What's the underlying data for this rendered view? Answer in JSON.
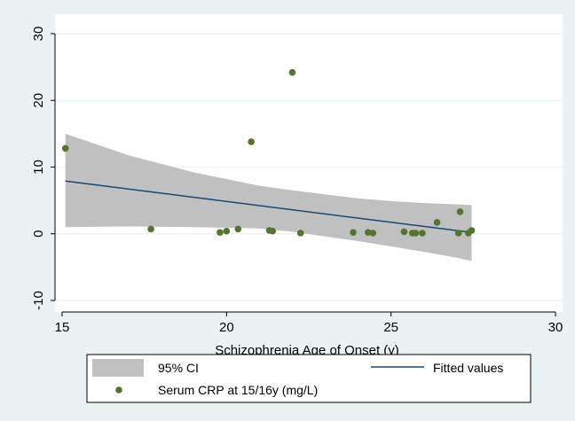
{
  "chart_data": {
    "type": "scatter",
    "title": "",
    "xlabel": "Schizophrenia Age of Onset (y)",
    "ylabel": "",
    "xlim": [
      15,
      30
    ],
    "ylim": [
      -10,
      30
    ],
    "x_ticks": [
      15,
      20,
      25,
      30
    ],
    "y_ticks": [
      -10,
      0,
      10,
      20,
      30
    ],
    "grid": true,
    "legend_position": "bottom",
    "colors": {
      "background": "#eaf2f3",
      "plot_area": "#ffffff",
      "ci_band": "#c0c0c0",
      "fitted_line": "#1a476f",
      "points": "#55752f"
    },
    "legend": [
      {
        "label": "95% CI",
        "symbol": "band"
      },
      {
        "label": "Fitted values",
        "symbol": "line"
      },
      {
        "label": "Serum CRP at 15/16y (mg/L)",
        "symbol": "point"
      }
    ],
    "series": [
      {
        "kind": "scatter",
        "points": [
          {
            "x": 15.1,
            "y": 12.8
          },
          {
            "x": 17.7,
            "y": 0.7
          },
          {
            "x": 19.8,
            "y": 0.2
          },
          {
            "x": 20.0,
            "y": 0.4
          },
          {
            "x": 20.35,
            "y": 0.7
          },
          {
            "x": 20.75,
            "y": 13.8
          },
          {
            "x": 21.3,
            "y": 0.5
          },
          {
            "x": 21.4,
            "y": 0.4
          },
          {
            "x": 22.0,
            "y": 24.2
          },
          {
            "x": 22.25,
            "y": 0.1
          },
          {
            "x": 23.85,
            "y": 0.2
          },
          {
            "x": 24.3,
            "y": 0.2
          },
          {
            "x": 24.45,
            "y": 0.1
          },
          {
            "x": 25.4,
            "y": 0.3
          },
          {
            "x": 25.65,
            "y": 0.1
          },
          {
            "x": 25.75,
            "y": 0.1
          },
          {
            "x": 25.95,
            "y": 0.1
          },
          {
            "x": 26.4,
            "y": 1.7
          },
          {
            "x": 27.05,
            "y": 0.1
          },
          {
            "x": 27.1,
            "y": 3.3
          },
          {
            "x": 27.35,
            "y": 0.1
          },
          {
            "x": 27.45,
            "y": 0.5
          }
        ]
      },
      {
        "kind": "fitted_line",
        "x": [
          15.1,
          27.45
        ],
        "y": [
          7.9,
          0.2
        ]
      },
      {
        "kind": "ci_band",
        "x": [
          15.1,
          17,
          19,
          21,
          22,
          23,
          24,
          25,
          26,
          27,
          27.45
        ],
        "upper": [
          15.0,
          11.8,
          9.2,
          7.2,
          6.5,
          5.9,
          5.3,
          4.9,
          4.6,
          4.4,
          4.3
        ],
        "lower": [
          1.0,
          1.1,
          1.0,
          0.8,
          0.3,
          -0.4,
          -1.1,
          -1.9,
          -2.7,
          -3.6,
          -4.1
        ]
      }
    ]
  }
}
